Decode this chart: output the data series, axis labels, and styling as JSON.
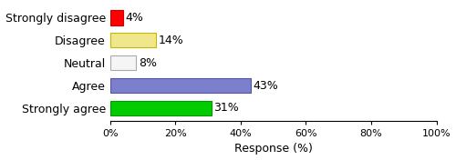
{
  "categories": [
    "Strongly disagree",
    "Disagree",
    "Neutral",
    "Agree",
    "Strongly agree"
  ],
  "values": [
    4,
    14,
    8,
    43,
    31
  ],
  "bar_colors": [
    "#ff0000",
    "#f0e68c",
    "#f5f5f5",
    "#7b7fcc",
    "#00cc00"
  ],
  "bar_edge_colors": [
    "#cc0000",
    "#c8b800",
    "#aaaaaa",
    "#5555aa",
    "#009900"
  ],
  "labels": [
    "4%",
    "14%",
    "8%",
    "43%",
    "31%"
  ],
  "xlabel": "Response (%)",
  "xlim": [
    0,
    100
  ],
  "xticks": [
    0,
    20,
    40,
    60,
    80,
    100
  ],
  "xtick_labels": [
    "0%",
    "20%",
    "40%",
    "60%",
    "80%",
    "100%"
  ],
  "figsize": [
    5.0,
    1.76
  ],
  "dpi": 100
}
